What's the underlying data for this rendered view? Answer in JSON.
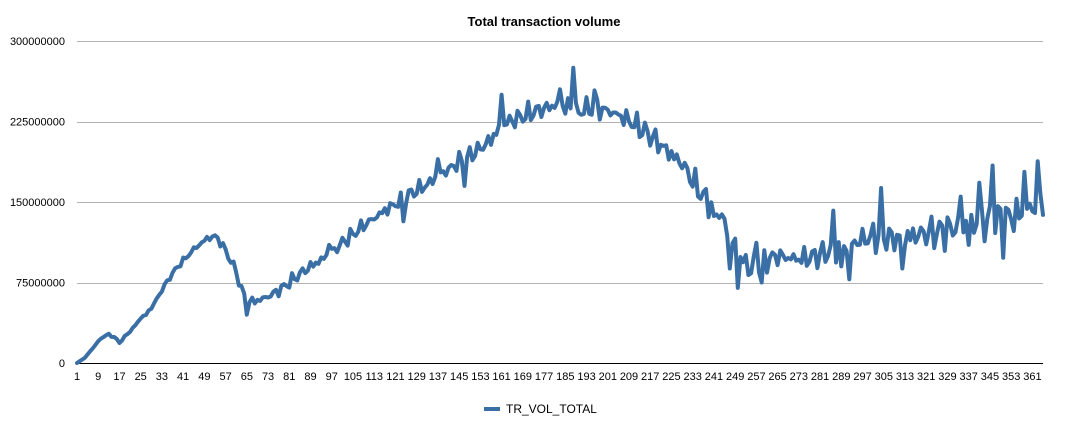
{
  "chart_data": {
    "type": "line",
    "title": "Total transaction volume",
    "xlabel": "",
    "ylabel": "",
    "ylim": [
      0,
      300000000
    ],
    "y_ticks": [
      "0",
      "75000000",
      "150000000",
      "225000000",
      "300000000"
    ],
    "x_ticks": [
      "1",
      "9",
      "17",
      "25",
      "33",
      "41",
      "49",
      "57",
      "65",
      "73",
      "81",
      "89",
      "97",
      "105",
      "113",
      "121",
      "129",
      "137",
      "145",
      "153",
      "161",
      "169",
      "177",
      "185",
      "193",
      "201",
      "209",
      "217",
      "225",
      "233",
      "241",
      "249",
      "257",
      "265",
      "273",
      "281",
      "289",
      "297",
      "305",
      "313",
      "321",
      "329",
      "337",
      "345",
      "353",
      "361"
    ],
    "x_range": [
      1,
      365
    ],
    "grid": true,
    "legend_position": "bottom",
    "line_color": "#3a6fa5",
    "series": [
      {
        "name": "TR_VOL_TOTAL",
        "anchors": [
          [
            1,
            0
          ],
          [
            4,
            5000000
          ],
          [
            7,
            14000000
          ],
          [
            10,
            23000000
          ],
          [
            13,
            27000000
          ],
          [
            16,
            22000000
          ],
          [
            17,
            19000000
          ],
          [
            20,
            27000000
          ],
          [
            23,
            35000000
          ],
          [
            25,
            42000000
          ],
          [
            27,
            45000000
          ],
          [
            30,
            55000000
          ],
          [
            33,
            68000000
          ],
          [
            36,
            80000000
          ],
          [
            39,
            90000000
          ],
          [
            42,
            98000000
          ],
          [
            45,
            106000000
          ],
          [
            48,
            112000000
          ],
          [
            50,
            116000000
          ],
          [
            53,
            118000000
          ],
          [
            55,
            113000000
          ],
          [
            58,
            100000000
          ],
          [
            61,
            85000000
          ],
          [
            63,
            68000000
          ],
          [
            65,
            60000000
          ],
          [
            67,
            57000000
          ],
          [
            70,
            59000000
          ],
          [
            73,
            62000000
          ],
          [
            76,
            66000000
          ],
          [
            79,
            71000000
          ],
          [
            82,
            77000000
          ],
          [
            85,
            83000000
          ],
          [
            89,
            90000000
          ],
          [
            93,
            96000000
          ],
          [
            97,
            103000000
          ],
          [
            101,
            112000000
          ],
          [
            105,
            120000000
          ],
          [
            109,
            128000000
          ],
          [
            113,
            135000000
          ],
          [
            117,
            142000000
          ],
          [
            121,
            148000000
          ],
          [
            125,
            155000000
          ],
          [
            129,
            161000000
          ],
          [
            133,
            166000000
          ],
          [
            137,
            175000000
          ],
          [
            141,
            180000000
          ],
          [
            145,
            188000000
          ],
          [
            149,
            193000000
          ],
          [
            153,
            200000000
          ],
          [
            157,
            208000000
          ],
          [
            161,
            222000000
          ],
          [
            165,
            226000000
          ],
          [
            169,
            230000000
          ],
          [
            173,
            234000000
          ],
          [
            177,
            237000000
          ],
          [
            181,
            240000000
          ],
          [
            185,
            238000000
          ],
          [
            189,
            240000000
          ],
          [
            193,
            236000000
          ],
          [
            197,
            237000000
          ],
          [
            201,
            235000000
          ],
          [
            205,
            231000000
          ],
          [
            209,
            226000000
          ],
          [
            213,
            219000000
          ],
          [
            217,
            212000000
          ],
          [
            221,
            203000000
          ],
          [
            225,
            194000000
          ],
          [
            229,
            186000000
          ],
          [
            233,
            170000000
          ],
          [
            237,
            155000000
          ],
          [
            241,
            145000000
          ],
          [
            243,
            140000000
          ],
          [
            246,
            125000000
          ],
          [
            249,
            110000000
          ],
          [
            252,
            95000000
          ],
          [
            255,
            88000000
          ],
          [
            258,
            92000000
          ],
          [
            262,
            97000000
          ],
          [
            265,
            100000000
          ],
          [
            269,
            98000000
          ],
          [
            273,
            97000000
          ],
          [
            277,
            98000000
          ],
          [
            281,
            101000000
          ],
          [
            285,
            104000000
          ],
          [
            289,
            107000000
          ],
          [
            293,
            111000000
          ],
          [
            297,
            115000000
          ],
          [
            301,
            118000000
          ],
          [
            305,
            117000000
          ],
          [
            309,
            116000000
          ],
          [
            313,
            117000000
          ],
          [
            317,
            119000000
          ],
          [
            321,
            121000000
          ],
          [
            325,
            122000000
          ],
          [
            329,
            124000000
          ],
          [
            333,
            127000000
          ],
          [
            337,
            129000000
          ],
          [
            341,
            130000000
          ],
          [
            345,
            132000000
          ],
          [
            349,
            134000000
          ],
          [
            353,
            136000000
          ],
          [
            357,
            139000000
          ],
          [
            361,
            145000000
          ],
          [
            365,
            140000000
          ]
        ],
        "amplitude": [
          [
            1,
            0
          ],
          [
            30,
            1500000
          ],
          [
            60,
            4000000
          ],
          [
            100,
            5500000
          ],
          [
            150,
            7000000
          ],
          [
            200,
            9000000
          ],
          [
            240,
            11000000
          ],
          [
            260,
            9000000
          ],
          [
            300,
            11000000
          ],
          [
            330,
            14000000
          ],
          [
            365,
            19000000
          ]
        ],
        "spikes": [
          [
            65,
            45000000
          ],
          [
            96,
            110000000
          ],
          [
            124,
            132000000
          ],
          [
            137,
            190000000
          ],
          [
            147,
            165000000
          ],
          [
            161,
            250000000
          ],
          [
            183,
            255000000
          ],
          [
            188,
            275000000
          ],
          [
            190,
            233000000
          ],
          [
            196,
            254000000
          ],
          [
            215,
            224000000
          ],
          [
            241,
            137000000
          ],
          [
            247,
            88000000
          ],
          [
            250,
            70000000
          ],
          [
            254,
            82000000
          ],
          [
            257,
            112000000
          ],
          [
            259,
            75000000
          ],
          [
            286,
            142000000
          ],
          [
            289,
            90000000
          ],
          [
            292,
            78000000
          ],
          [
            304,
            163000000
          ],
          [
            312,
            88000000
          ],
          [
            334,
            155000000
          ],
          [
            337,
            110000000
          ],
          [
            341,
            168000000
          ],
          [
            346,
            184000000
          ],
          [
            350,
            98000000
          ],
          [
            358,
            178000000
          ],
          [
            363,
            188000000
          ],
          [
            365,
            138000000
          ]
        ]
      }
    ]
  }
}
